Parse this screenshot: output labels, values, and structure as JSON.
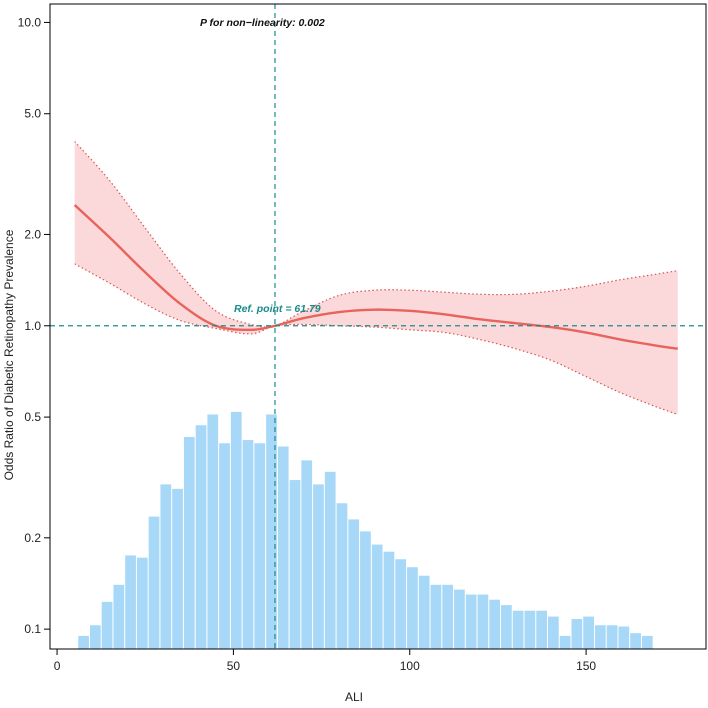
{
  "chart_data": {
    "type": "line",
    "title": "",
    "xlabel": "ALI",
    "ylabel": "Odds Ratio of Diabetic Retinopathy Prevalence",
    "x_ticks": [
      0,
      50,
      100,
      150
    ],
    "x_tick_labels": [
      "0",
      "50",
      "100",
      "150"
    ],
    "y_scale": "log",
    "y_ticks": [
      0.1,
      0.2,
      0.5,
      1.0,
      2.0,
      5.0,
      10.0
    ],
    "y_tick_labels": [
      "0.1",
      "0.2",
      "0.5",
      "1.0",
      "2.0",
      "5.0",
      "10.0"
    ],
    "xlim": [
      -2,
      184
    ],
    "ylim": [
      0.086,
      11.5
    ],
    "annotation_top": "P for non−linearity: 0.002",
    "ref_label": "Ref. point = 61.79",
    "ref_x": 61.79,
    "ref_y": 1.0,
    "series": [
      {
        "name": "odds ratio",
        "x": [
          5,
          15,
          25,
          35,
          45,
          55,
          61.79,
          70,
          80,
          90,
          100,
          110,
          120,
          130,
          140,
          150,
          160,
          170,
          176
        ],
        "values": [
          2.5,
          1.95,
          1.5,
          1.18,
          1.0,
          0.97,
          1.0,
          1.06,
          1.11,
          1.13,
          1.12,
          1.09,
          1.05,
          1.02,
          0.99,
          0.95,
          0.9,
          0.86,
          0.84
        ]
      },
      {
        "name": "95% CI upper",
        "x": [
          5,
          15,
          25,
          35,
          45,
          55,
          61.79,
          70,
          80,
          90,
          100,
          110,
          120,
          130,
          140,
          150,
          160,
          170,
          176
        ],
        "values": [
          4.05,
          3.0,
          2.1,
          1.48,
          1.12,
          1.01,
          1.0,
          1.12,
          1.26,
          1.31,
          1.31,
          1.29,
          1.27,
          1.27,
          1.3,
          1.35,
          1.42,
          1.48,
          1.52
        ]
      },
      {
        "name": "95% CI lower",
        "x": [
          5,
          15,
          25,
          35,
          45,
          55,
          61.79,
          70,
          80,
          90,
          100,
          110,
          120,
          130,
          140,
          150,
          160,
          170,
          176
        ],
        "values": [
          1.6,
          1.38,
          1.18,
          1.04,
          0.98,
          0.94,
          1.0,
          1.01,
          1.0,
          0.99,
          0.97,
          0.95,
          0.9,
          0.84,
          0.77,
          0.68,
          0.6,
          0.54,
          0.51
        ]
      }
    ],
    "histogram": {
      "bin_width": 3.33,
      "bin_start": 6,
      "values": [
        0.095,
        0.103,
        0.123,
        0.14,
        0.175,
        0.172,
        0.235,
        0.3,
        0.29,
        0.43,
        0.47,
        0.51,
        0.41,
        0.52,
        0.42,
        0.41,
        0.51,
        0.4,
        0.31,
        0.36,
        0.3,
        0.33,
        0.26,
        0.23,
        0.21,
        0.19,
        0.18,
        0.17,
        0.16,
        0.15,
        0.14,
        0.14,
        0.135,
        0.13,
        0.13,
        0.125,
        0.12,
        0.115,
        0.115,
        0.115,
        0.11,
        0.095,
        0.108,
        0.11,
        0.103,
        0.103,
        0.102,
        0.097,
        0.095
      ]
    },
    "colors": {
      "line": "#e8635b",
      "ci_fill": "#fbd9da",
      "ci_border": "#d9534f",
      "hist": "#a8d8f8",
      "ref": "#1a8c8a"
    }
  }
}
